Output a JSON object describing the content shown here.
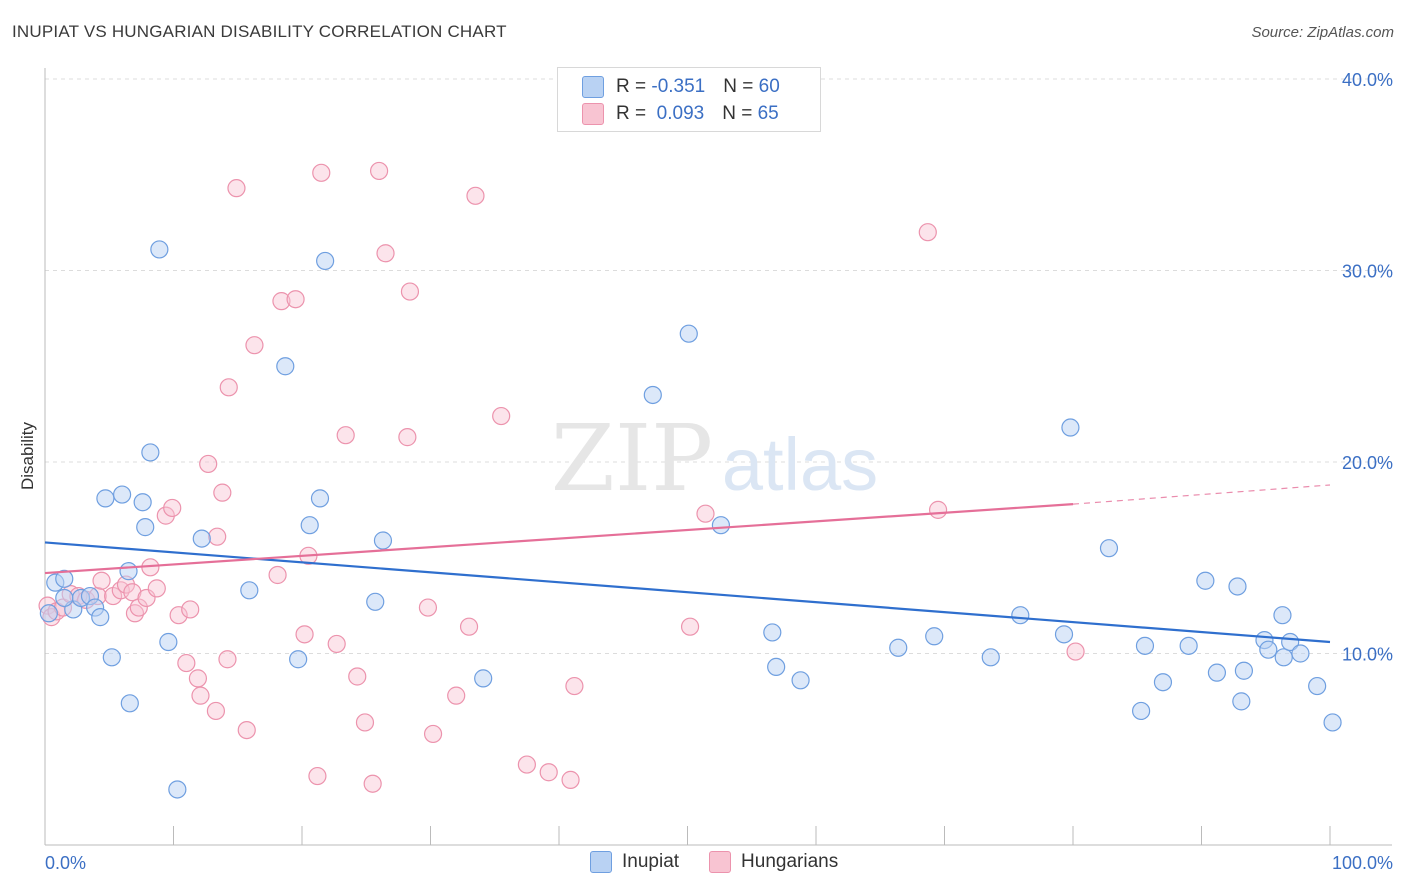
{
  "title": "INUPIAT VS HUNGARIAN DISABILITY CORRELATION CHART",
  "source": "Source: ZipAtlas.com",
  "watermark": {
    "zip": "ZIP",
    "atlas": "atlas"
  },
  "colors": {
    "inupiat_fill": "#b9d2f3",
    "inupiat_stroke": "#6f9fe0",
    "inupiat_line": "#2f6fce",
    "hungarian_fill": "#f8c4d2",
    "hungarian_stroke": "#ec93ad",
    "hungarian_line": "#e56f98",
    "axis_text": "#3b6fc4",
    "grid": "#dcdcdc"
  },
  "legend": {
    "rows": [
      {
        "r_label": "R = ",
        "r_value": "-0.351",
        "n_label": "N = ",
        "n_value": "60"
      },
      {
        "r_label": "R = ",
        "r_value": " 0.093",
        "n_label": "N = ",
        "n_value": "65"
      }
    ]
  },
  "bottom_legend": {
    "inupiat": "Inupiat",
    "hungarians": "Hungarians"
  },
  "chart_data": {
    "type": "scatter",
    "xlabel": "",
    "ylabel": "Disability",
    "xlim": [
      0,
      100
    ],
    "ylim": [
      0,
      40
    ],
    "x_tick_labels": [
      "0.0%",
      "100.0%"
    ],
    "y_ticks": [
      10,
      20,
      30,
      40
    ],
    "y_tick_labels": [
      "10.0%",
      "20.0%",
      "30.0%",
      "40.0%"
    ],
    "grid": true,
    "legend_position": "top-center",
    "series": [
      {
        "name": "Inupiat",
        "r": -0.351,
        "n": 60,
        "trend": {
          "x0": 0,
          "y0": 15.8,
          "x1": 100,
          "y1": 10.6
        },
        "points": [
          [
            0.3,
            12.1
          ],
          [
            0.8,
            13.7
          ],
          [
            1.5,
            13.9
          ],
          [
            2.2,
            12.3
          ],
          [
            2.8,
            12.9
          ],
          [
            3.5,
            13.0
          ],
          [
            3.9,
            12.4
          ],
          [
            4.3,
            11.9
          ],
          [
            4.7,
            18.1
          ],
          [
            5.2,
            9.8
          ],
          [
            6.0,
            18.3
          ],
          [
            6.5,
            14.3
          ],
          [
            6.6,
            7.4
          ],
          [
            7.6,
            17.9
          ],
          [
            7.8,
            16.6
          ],
          [
            8.2,
            20.5
          ],
          [
            8.9,
            31.1
          ],
          [
            9.6,
            10.6
          ],
          [
            10.3,
            2.9
          ],
          [
            12.2,
            16.0
          ],
          [
            15.9,
            13.3
          ],
          [
            18.7,
            25.0
          ],
          [
            19.7,
            9.7
          ],
          [
            20.6,
            16.7
          ],
          [
            21.4,
            18.1
          ],
          [
            21.8,
            30.5
          ],
          [
            25.7,
            12.7
          ],
          [
            26.3,
            15.9
          ],
          [
            34.1,
            8.7
          ],
          [
            47.3,
            23.5
          ],
          [
            50.1,
            26.7
          ],
          [
            52.6,
            16.7
          ],
          [
            56.6,
            11.1
          ],
          [
            56.9,
            9.3
          ],
          [
            58.8,
            8.6
          ],
          [
            66.4,
            10.3
          ],
          [
            69.2,
            10.9
          ],
          [
            73.6,
            9.8
          ],
          [
            75.9,
            12.0
          ],
          [
            79.3,
            11.0
          ],
          [
            79.8,
            21.8
          ],
          [
            82.8,
            15.5
          ],
          [
            85.3,
            7.0
          ],
          [
            85.6,
            10.4
          ],
          [
            87.0,
            8.5
          ],
          [
            89.0,
            10.4
          ],
          [
            90.3,
            13.8
          ],
          [
            91.2,
            9.0
          ],
          [
            92.8,
            13.5
          ],
          [
            93.1,
            7.5
          ],
          [
            93.3,
            9.1
          ],
          [
            94.9,
            10.7
          ],
          [
            95.2,
            10.2
          ],
          [
            96.3,
            12.0
          ],
          [
            96.4,
            9.8
          ],
          [
            96.9,
            10.6
          ],
          [
            97.7,
            10.0
          ],
          [
            99.0,
            8.3
          ],
          [
            100.2,
            6.4
          ],
          [
            1.5,
            12.9
          ]
        ]
      },
      {
        "name": "Hungarians",
        "r": 0.093,
        "n": 65,
        "trend": {
          "x0": 0,
          "y0": 14.2,
          "x1": 80,
          "y1": 17.8,
          "dash_x1": 100,
          "dash_y1": 18.8
        },
        "points": [
          [
            0.2,
            12.5
          ],
          [
            0.5,
            11.9
          ],
          [
            0.9,
            12.2
          ],
          [
            1.4,
            12.4
          ],
          [
            2.0,
            13.1
          ],
          [
            2.6,
            13.0
          ],
          [
            3.2,
            12.8
          ],
          [
            4.1,
            13.0
          ],
          [
            4.4,
            13.8
          ],
          [
            5.3,
            13.0
          ],
          [
            5.9,
            13.3
          ],
          [
            6.3,
            13.6
          ],
          [
            6.8,
            13.2
          ],
          [
            7.0,
            12.1
          ],
          [
            7.3,
            12.4
          ],
          [
            7.9,
            12.9
          ],
          [
            8.2,
            14.5
          ],
          [
            8.7,
            13.4
          ],
          [
            9.4,
            17.2
          ],
          [
            9.9,
            17.6
          ],
          [
            10.4,
            12.0
          ],
          [
            11.0,
            9.5
          ],
          [
            11.3,
            12.3
          ],
          [
            11.9,
            8.7
          ],
          [
            12.1,
            7.8
          ],
          [
            12.7,
            19.9
          ],
          [
            13.3,
            7.0
          ],
          [
            13.8,
            18.4
          ],
          [
            13.4,
            16.1
          ],
          [
            14.2,
            9.7
          ],
          [
            14.3,
            23.9
          ],
          [
            14.9,
            34.3
          ],
          [
            15.7,
            6.0
          ],
          [
            16.3,
            26.1
          ],
          [
            18.1,
            14.1
          ],
          [
            18.4,
            28.4
          ],
          [
            19.5,
            28.5
          ],
          [
            20.2,
            11.0
          ],
          [
            20.5,
            15.1
          ],
          [
            21.2,
            3.6
          ],
          [
            21.5,
            35.1
          ],
          [
            22.7,
            10.5
          ],
          [
            23.4,
            21.4
          ],
          [
            24.3,
            8.8
          ],
          [
            24.9,
            6.4
          ],
          [
            25.5,
            3.2
          ],
          [
            26.0,
            35.2
          ],
          [
            26.5,
            30.9
          ],
          [
            28.2,
            21.3
          ],
          [
            28.4,
            28.9
          ],
          [
            29.8,
            12.4
          ],
          [
            30.2,
            5.8
          ],
          [
            32.0,
            7.8
          ],
          [
            33.0,
            11.4
          ],
          [
            33.5,
            33.9
          ],
          [
            35.5,
            22.4
          ],
          [
            37.5,
            4.2
          ],
          [
            39.2,
            3.8
          ],
          [
            40.9,
            3.4
          ],
          [
            41.2,
            8.3
          ],
          [
            50.2,
            11.4
          ],
          [
            51.4,
            17.3
          ],
          [
            68.7,
            32.0
          ],
          [
            69.5,
            17.5
          ],
          [
            80.2,
            10.1
          ]
        ]
      }
    ]
  }
}
